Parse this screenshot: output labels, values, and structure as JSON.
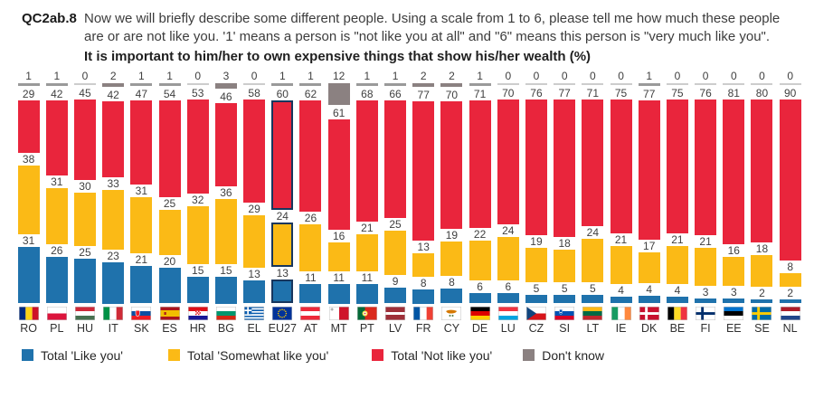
{
  "header": {
    "code": "QC2ab.8",
    "question": "Now we will briefly describe some different people. Using a scale from 1 to 6, please tell me how much these people are or are not like you. '1' means a person is \"not like you at all\" and \"6\" means this person is \"very much like you\".",
    "subtitle": "It is important to him/her to own expensive things that show his/her wealth  (%)"
  },
  "chart_data": {
    "type": "bar",
    "stacked": true,
    "percent_total": 100,
    "title": "It is important to him/her to own expensive things that show his/her wealth (%)",
    "legend_position": "bottom",
    "highlighted_category": "EU27",
    "categories": [
      "RO",
      "PL",
      "HU",
      "IT",
      "SK",
      "ES",
      "HR",
      "BG",
      "EL",
      "EU27",
      "AT",
      "MT",
      "PT",
      "LV",
      "FR",
      "CY",
      "DE",
      "LU",
      "CZ",
      "SI",
      "LT",
      "IE",
      "DK",
      "BE",
      "FI",
      "EE",
      "SE",
      "NL"
    ],
    "series": [
      {
        "name": "Total 'Like you'",
        "color": "#1f72ac",
        "values": [
          31,
          26,
          25,
          23,
          21,
          20,
          15,
          15,
          13,
          13,
          11,
          11,
          11,
          9,
          8,
          8,
          6,
          6,
          5,
          5,
          5,
          4,
          4,
          4,
          3,
          3,
          2,
          2
        ]
      },
      {
        "name": "Total 'Somewhat like you'",
        "color": "#fbba16",
        "values": [
          38,
          31,
          30,
          33,
          31,
          25,
          32,
          36,
          29,
          24,
          26,
          16,
          21,
          25,
          13,
          19,
          22,
          24,
          19,
          18,
          24,
          21,
          17,
          21,
          21,
          16,
          18,
          8
        ]
      },
      {
        "name": "Total 'Not like you'",
        "color": "#e9253c",
        "values": [
          29,
          42,
          45,
          42,
          47,
          54,
          53,
          46,
          58,
          60,
          62,
          61,
          68,
          66,
          77,
          70,
          71,
          70,
          76,
          77,
          71,
          75,
          77,
          75,
          76,
          81,
          80,
          90
        ]
      },
      {
        "name": "Don't know",
        "color": "#8b8181",
        "values": [
          1,
          1,
          0,
          2,
          1,
          1,
          0,
          3,
          0,
          1,
          1,
          12,
          1,
          1,
          2,
          2,
          1,
          0,
          0,
          0,
          0,
          0,
          1,
          0,
          0,
          0,
          0,
          0
        ]
      }
    ],
    "highlight_outline_color": "#17365d",
    "zero_dontknow_line_color": "#cdcdcd"
  }
}
